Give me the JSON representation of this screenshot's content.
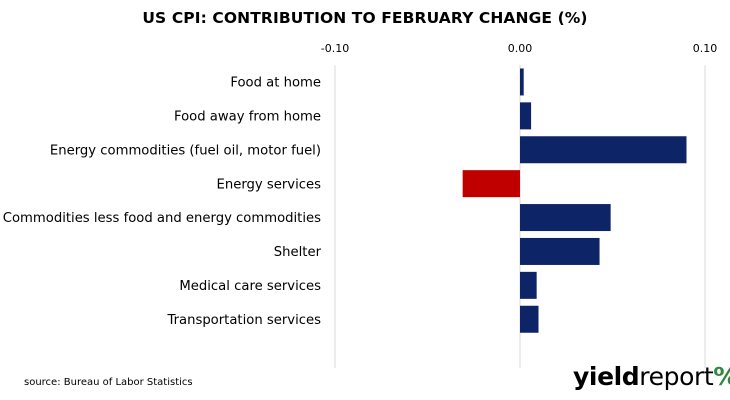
{
  "chart_data": {
    "type": "bar",
    "orientation": "horizontal",
    "title": "US CPI: CONTRIBUTION TO FEBRUARY CHANGE (%)",
    "xlabel": "",
    "ylabel": "",
    "xlim": [
      -0.1,
      0.1
    ],
    "x_ticks": [
      -0.1,
      0.0,
      0.1
    ],
    "x_tick_labels": [
      "-0.10",
      "0.00",
      "0.10"
    ],
    "x_axis_position": "top",
    "grid": "vertical at ticks",
    "legend": "none",
    "categories": [
      "Food at home",
      "Food away from home",
      "Energy commodities (fuel oil, motor fuel)",
      "Energy services",
      "Commodities less food and energy commodities",
      "Shelter",
      "Medical care services",
      "Transportation services"
    ],
    "values": [
      0.002,
      0.006,
      0.09,
      -0.031,
      0.049,
      0.043,
      0.009,
      0.01
    ],
    "colors": {
      "positive": "#0d2466",
      "negative": "#c00000",
      "grid": "#d9d9d9"
    }
  },
  "footer": {
    "source": "source: Bureau of Labor Statistics",
    "logo_part1": "yield",
    "logo_part2": "report",
    "logo_symbol": "%"
  }
}
